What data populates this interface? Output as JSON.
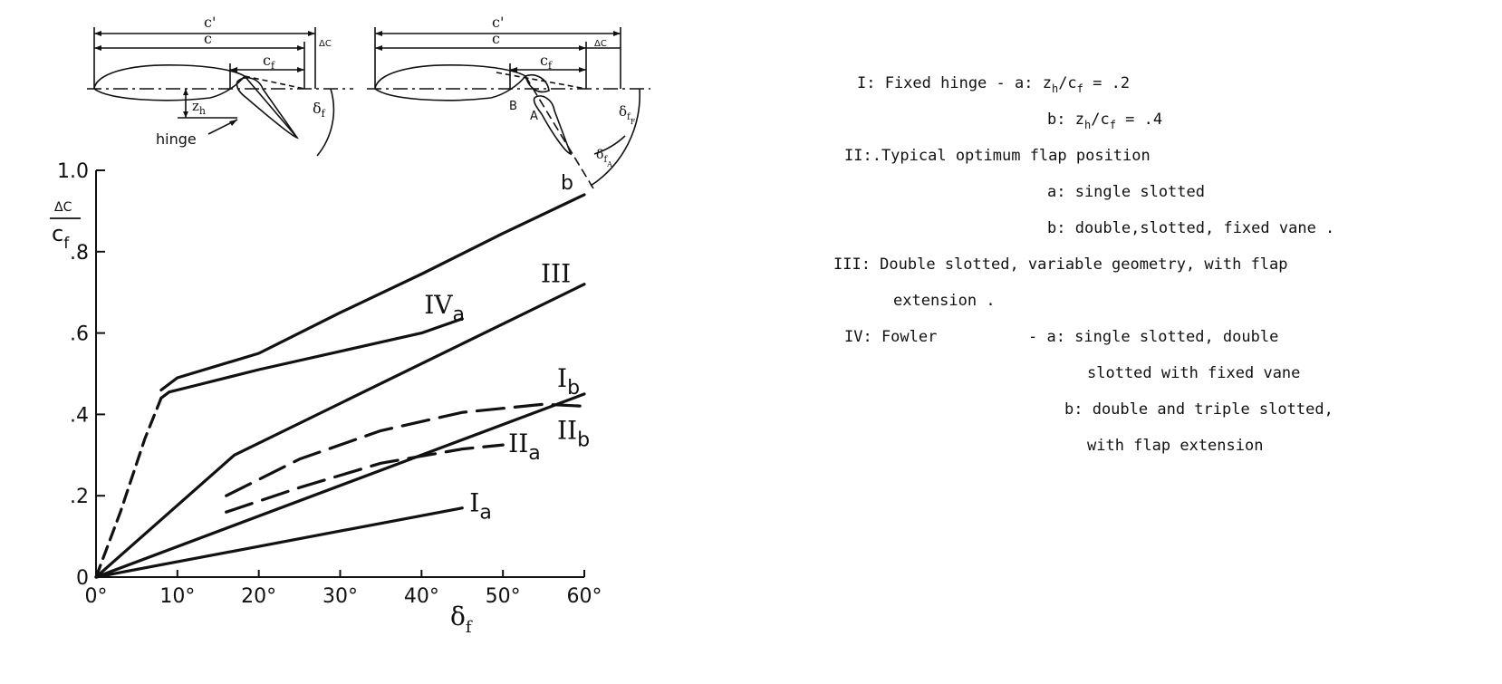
{
  "chart_data": {
    "type": "line",
    "xlabel": "δ",
    "xlabel_sub": "f",
    "ylabel_num": "ΔC",
    "ylabel_den": "c",
    "ylabel_den_sub": "f",
    "xlim": [
      0,
      60
    ],
    "ylim": [
      0,
      1.0
    ],
    "x_ticks": [
      0,
      10,
      20,
      30,
      40,
      50,
      60
    ],
    "x_tick_labels": [
      "0°",
      "10°",
      "20°",
      "30°",
      "40°",
      "50°",
      "60°"
    ],
    "y_ticks": [
      0,
      0.2,
      0.4,
      0.6,
      0.8,
      1.0
    ],
    "y_tick_labels": [
      "0",
      ".2",
      ".4",
      ".6",
      ".8",
      "1.0"
    ],
    "series": [
      {
        "label": "Ia",
        "style": "solid",
        "x": [
          0,
          45
        ],
        "y": [
          0,
          0.17
        ]
      },
      {
        "label": "Ib",
        "style": "solid",
        "x": [
          0,
          60
        ],
        "y": [
          0,
          0.45
        ]
      },
      {
        "label": "IIa",
        "style": "dashed",
        "x": [
          16,
          25,
          35,
          45,
          50
        ],
        "y": [
          0.16,
          0.22,
          0.28,
          0.315,
          0.325
        ]
      },
      {
        "label": "IIb",
        "style": "dashed",
        "x": [
          16,
          25,
          35,
          45,
          55,
          60
        ],
        "y": [
          0.2,
          0.29,
          0.36,
          0.405,
          0.425,
          0.42
        ]
      },
      {
        "label": "III",
        "style": "solid",
        "x": [
          0,
          17,
          60
        ],
        "y": [
          0,
          0.3,
          0.72
        ]
      },
      {
        "label": "IVa",
        "style": "mixed",
        "dash_until_x": 8,
        "x": [
          0,
          3,
          6,
          8,
          9,
          12,
          20,
          30,
          40,
          45
        ],
        "y": [
          0,
          0.16,
          0.34,
          0.44,
          0.455,
          0.47,
          0.51,
          0.555,
          0.6,
          0.635
        ]
      },
      {
        "label": "IVb",
        "style": "solid",
        "x": [
          8,
          10,
          20,
          30,
          40,
          50,
          60
        ],
        "y": [
          0.46,
          0.49,
          0.55,
          0.65,
          0.745,
          0.845,
          0.94
        ]
      }
    ],
    "curve_labels": [
      {
        "roman": "I",
        "suffix": "a",
        "series": "Ia"
      },
      {
        "roman": "I",
        "suffix": "b",
        "series": "Ib"
      },
      {
        "roman": "II",
        "suffix": "a",
        "series": "IIa"
      },
      {
        "roman": "II",
        "suffix": "b",
        "series": "IIb"
      },
      {
        "roman": "III",
        "suffix": "",
        "series": "III"
      },
      {
        "roman": "IV",
        "suffix": "a",
        "series": "IVa"
      },
      {
        "roman": "",
        "suffix": "b",
        "series": "IVb"
      }
    ]
  },
  "diagram": {
    "left": {
      "c_prime": "c'",
      "c": "c",
      "delta_c": "ΔC",
      "cf": "c",
      "cf_sub": "f",
      "zh": "z",
      "zh_sub": "h",
      "hinge": "hinge",
      "delta_f": "δ",
      "delta_f_sub": "f"
    },
    "right": {
      "c_prime": "c'",
      "c": "c",
      "delta_c": "ΔC",
      "cf": "c",
      "cf_sub": "f",
      "point_b": "B",
      "point_a": "A",
      "delta_ff": "δ",
      "delta_ff_sub": "f",
      "delta_ff_subsub": "F",
      "delta_fa": "δ",
      "delta_fa_sub": "f",
      "delta_fa_subsub": "A"
    }
  },
  "legend": {
    "I": {
      "head": "I: Fixed hinge - a: ",
      "a_z": "z",
      "a_z_sub": "h",
      "a_c": "/c",
      "a_c_sub": "f",
      "a_val": " = .2",
      "b_prefix": "b: ",
      "b_z": "z",
      "b_z_sub": "h",
      "b_c": "/c",
      "b_c_sub": "f",
      "b_val": " = .4"
    },
    "II": {
      "head": "II:.Typical optimum flap position",
      "a": "a: single slotted",
      "b": "b: double,slotted, fixed vane ."
    },
    "III": {
      "head": "III: Double slotted, variable geometry, with flap",
      "cont": "extension ."
    },
    "IV": {
      "head": "IV: Fowler",
      "a": "- a: single slotted, double",
      "a_cont": "slotted with fixed vane",
      "b": "b: double and triple slotted,",
      "b_cont": "with flap extension"
    }
  }
}
